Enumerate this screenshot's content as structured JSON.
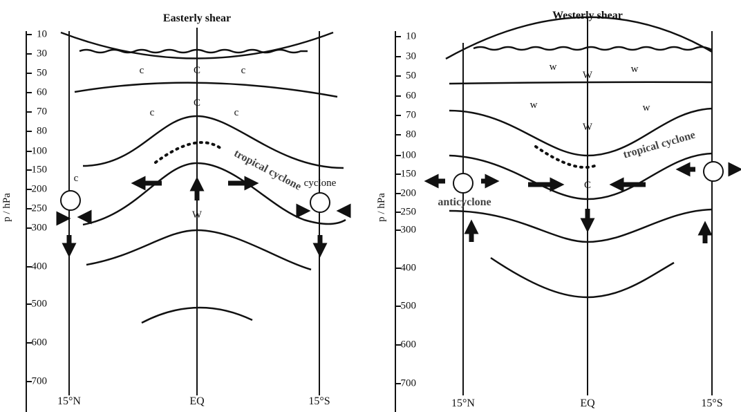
{
  "panels": [
    {
      "title": "Easterly shear",
      "axis_label": "p / hPa",
      "pressure_ticks": [
        "10",
        "30",
        "50",
        "60",
        "70",
        "80",
        "100",
        "150",
        "200",
        "250",
        "300",
        "400",
        "500",
        "600",
        "700"
      ],
      "x_labels": [
        "15°N",
        "EQ",
        "15°S"
      ],
      "annotations": [
        "c",
        "C",
        "c",
        "C",
        "c",
        "c",
        "tropical cyclone",
        "c",
        "cyclone",
        "W"
      ]
    },
    {
      "title": "Westerly shear",
      "axis_label": "p / hPa",
      "pressure_ticks": [
        "10",
        "30",
        "50",
        "60",
        "70",
        "80",
        "100",
        "150",
        "200",
        "250",
        "300",
        "400",
        "500",
        "600",
        "700"
      ],
      "x_labels": [
        "15°N",
        "EQ",
        "15°S"
      ],
      "annotations": [
        "w",
        "W",
        "w",
        "w",
        "w",
        "W",
        "tropical cyclone",
        "C",
        "anticyclone"
      ]
    }
  ]
}
